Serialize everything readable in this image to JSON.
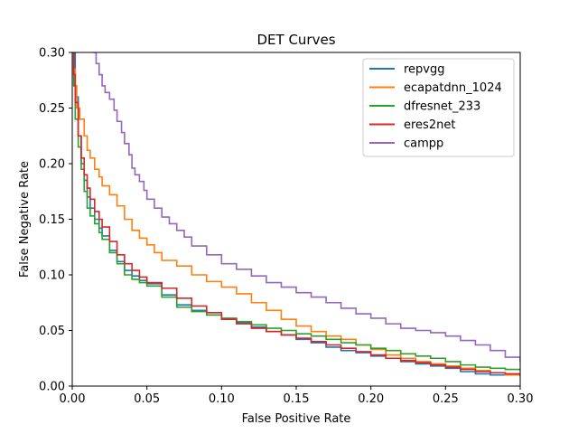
{
  "chart_data": {
    "type": "line",
    "title": "DET Curves",
    "xlabel": "False Positive Rate",
    "ylabel": "False Negative Rate",
    "xlim": [
      0.0,
      0.3
    ],
    "ylim": [
      0.0,
      0.3
    ],
    "xticks": [
      "0.00",
      "0.05",
      "0.10",
      "0.15",
      "0.20",
      "0.25",
      "0.30"
    ],
    "yticks": [
      "0.00",
      "0.05",
      "0.10",
      "0.15",
      "0.20",
      "0.25",
      "0.30"
    ],
    "grid": false,
    "legend_position": "top-right",
    "series": [
      {
        "name": "repvgg",
        "color": "#1f77b4",
        "x": [
          0.0005,
          0.002,
          0.004,
          0.006,
          0.008,
          0.01,
          0.012,
          0.015,
          0.018,
          0.02,
          0.025,
          0.03,
          0.035,
          0.04,
          0.045,
          0.05,
          0.06,
          0.07,
          0.08,
          0.09,
          0.1,
          0.11,
          0.12,
          0.13,
          0.14,
          0.15,
          0.16,
          0.17,
          0.18,
          0.19,
          0.2,
          0.21,
          0.22,
          0.23,
          0.24,
          0.25,
          0.26,
          0.27,
          0.28,
          0.29,
          0.3
        ],
        "y": [
          0.3,
          0.26,
          0.225,
          0.2,
          0.185,
          0.17,
          0.16,
          0.15,
          0.142,
          0.135,
          0.122,
          0.112,
          0.104,
          0.099,
          0.095,
          0.092,
          0.082,
          0.073,
          0.068,
          0.064,
          0.06,
          0.057,
          0.053,
          0.049,
          0.046,
          0.042,
          0.039,
          0.035,
          0.032,
          0.03,
          0.027,
          0.025,
          0.022,
          0.02,
          0.018,
          0.016,
          0.013,
          0.011,
          0.01,
          0.01,
          0.009
        ]
      },
      {
        "name": "ecapatdnn_1024",
        "color": "#ff7f0e",
        "x": [
          0.0005,
          0.001,
          0.002,
          0.003,
          0.005,
          0.008,
          0.01,
          0.012,
          0.015,
          0.018,
          0.02,
          0.025,
          0.03,
          0.035,
          0.04,
          0.045,
          0.05,
          0.055,
          0.06,
          0.07,
          0.08,
          0.09,
          0.1,
          0.11,
          0.12,
          0.13,
          0.14,
          0.15,
          0.16,
          0.17,
          0.18,
          0.19,
          0.2,
          0.21,
          0.22,
          0.23,
          0.24,
          0.25,
          0.26,
          0.27,
          0.28,
          0.29,
          0.3
        ],
        "y": [
          0.3,
          0.285,
          0.27,
          0.25,
          0.24,
          0.225,
          0.212,
          0.205,
          0.195,
          0.188,
          0.18,
          0.172,
          0.162,
          0.15,
          0.14,
          0.133,
          0.127,
          0.12,
          0.113,
          0.108,
          0.1,
          0.094,
          0.089,
          0.083,
          0.075,
          0.068,
          0.06,
          0.054,
          0.049,
          0.045,
          0.042,
          0.037,
          0.033,
          0.028,
          0.025,
          0.022,
          0.02,
          0.018,
          0.016,
          0.014,
          0.012,
          0.01,
          0.009
        ]
      },
      {
        "name": "dfresnet_233",
        "color": "#2ca02c",
        "x": [
          0.0005,
          0.001,
          0.002,
          0.004,
          0.006,
          0.008,
          0.01,
          0.012,
          0.015,
          0.018,
          0.02,
          0.025,
          0.03,
          0.035,
          0.04,
          0.045,
          0.05,
          0.06,
          0.07,
          0.08,
          0.09,
          0.1,
          0.11,
          0.12,
          0.13,
          0.14,
          0.15,
          0.16,
          0.17,
          0.18,
          0.19,
          0.2,
          0.21,
          0.22,
          0.23,
          0.24,
          0.25,
          0.26,
          0.27,
          0.28,
          0.29,
          0.3
        ],
        "y": [
          0.3,
          0.27,
          0.24,
          0.215,
          0.195,
          0.175,
          0.16,
          0.153,
          0.146,
          0.138,
          0.132,
          0.12,
          0.11,
          0.1,
          0.096,
          0.093,
          0.09,
          0.08,
          0.071,
          0.067,
          0.064,
          0.061,
          0.058,
          0.055,
          0.052,
          0.05,
          0.047,
          0.045,
          0.042,
          0.039,
          0.037,
          0.034,
          0.032,
          0.029,
          0.027,
          0.025,
          0.022,
          0.019,
          0.017,
          0.016,
          0.015,
          0.014
        ]
      },
      {
        "name": "eres2net",
        "color": "#d62728",
        "x": [
          0.0005,
          0.001,
          0.002,
          0.004,
          0.006,
          0.008,
          0.01,
          0.012,
          0.015,
          0.018,
          0.02,
          0.025,
          0.03,
          0.035,
          0.04,
          0.045,
          0.05,
          0.06,
          0.07,
          0.08,
          0.09,
          0.1,
          0.11,
          0.12,
          0.13,
          0.14,
          0.15,
          0.16,
          0.17,
          0.18,
          0.19,
          0.2,
          0.21,
          0.22,
          0.23,
          0.24,
          0.25,
          0.26,
          0.27,
          0.28,
          0.29,
          0.3
        ],
        "y": [
          0.3,
          0.28,
          0.255,
          0.225,
          0.205,
          0.19,
          0.178,
          0.168,
          0.157,
          0.15,
          0.143,
          0.13,
          0.118,
          0.11,
          0.104,
          0.098,
          0.093,
          0.088,
          0.079,
          0.072,
          0.066,
          0.06,
          0.056,
          0.052,
          0.049,
          0.046,
          0.043,
          0.04,
          0.037,
          0.034,
          0.031,
          0.028,
          0.025,
          0.023,
          0.021,
          0.019,
          0.017,
          0.015,
          0.013,
          0.012,
          0.011,
          0.011
        ]
      },
      {
        "name": "campp",
        "color": "#9467bd",
        "x": [
          0.014,
          0.016,
          0.018,
          0.02,
          0.022,
          0.025,
          0.028,
          0.03,
          0.033,
          0.035,
          0.038,
          0.04,
          0.042,
          0.045,
          0.048,
          0.05,
          0.055,
          0.06,
          0.065,
          0.07,
          0.075,
          0.08,
          0.09,
          0.1,
          0.11,
          0.12,
          0.13,
          0.14,
          0.15,
          0.16,
          0.17,
          0.18,
          0.19,
          0.2,
          0.21,
          0.22,
          0.23,
          0.24,
          0.25,
          0.26,
          0.27,
          0.28,
          0.29,
          0.3
        ],
        "y": [
          0.3,
          0.29,
          0.28,
          0.27,
          0.264,
          0.258,
          0.248,
          0.238,
          0.228,
          0.218,
          0.208,
          0.196,
          0.19,
          0.184,
          0.176,
          0.168,
          0.16,
          0.152,
          0.146,
          0.14,
          0.134,
          0.126,
          0.118,
          0.11,
          0.105,
          0.099,
          0.093,
          0.089,
          0.084,
          0.08,
          0.075,
          0.07,
          0.065,
          0.061,
          0.056,
          0.052,
          0.05,
          0.048,
          0.045,
          0.041,
          0.037,
          0.032,
          0.026,
          0.022
        ]
      }
    ]
  }
}
